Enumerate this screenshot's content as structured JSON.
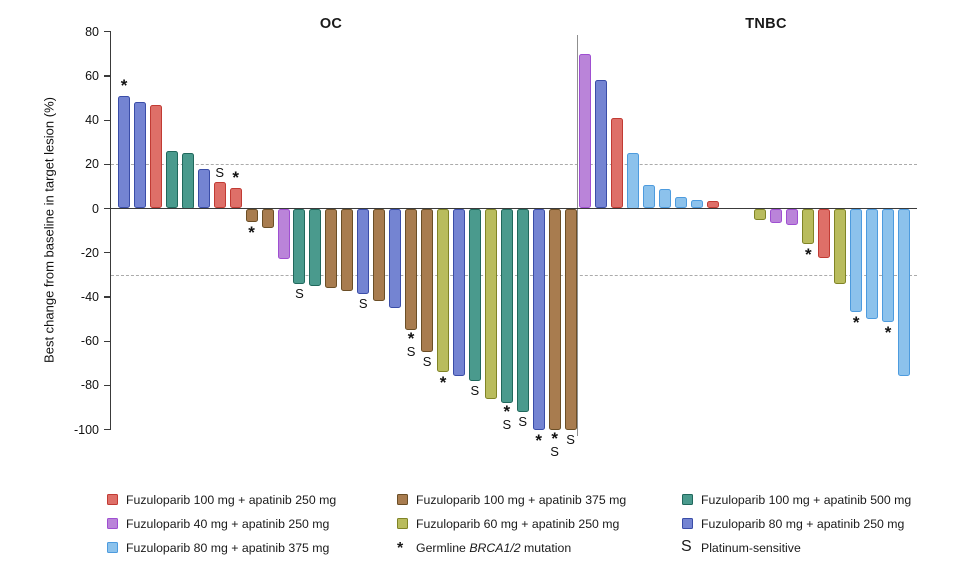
{
  "figure": {
    "ylabel": "Best change from baseline in target lesion (%)"
  },
  "colors": {
    "fuzu100_apa250": {
      "fill": "#DE6F68",
      "border": "#C13B34"
    },
    "fuzu100_apa375": {
      "fill": "#A87C4F",
      "border": "#6B4E26"
    },
    "fuzu100_apa500": {
      "fill": "#4A9A8D",
      "border": "#20685C"
    },
    "fuzu40_apa250": {
      "fill": "#BA84D9",
      "border": "#9F4FD1"
    },
    "fuzu60_apa250": {
      "fill": "#B9BC5D",
      "border": "#808426"
    },
    "fuzu80_apa250": {
      "fill": "#7484D2",
      "border": "#3A4DA8"
    },
    "fuzu80_apa375": {
      "fill": "#8CC2EC",
      "border": "#4D9BDE"
    }
  },
  "chart_data": {
    "type": "bar",
    "title": "",
    "ylabel": "Best change from baseline in target lesion (%)",
    "ylim": [
      -100,
      80
    ],
    "yticks": [
      80,
      60,
      40,
      20,
      0,
      -20,
      -40,
      -60,
      -80,
      -100
    ],
    "reference_lines": [
      20,
      -30
    ],
    "grid": "off",
    "legend_position": "bottom",
    "mark_meanings": {
      "*": "Germline BRCA1/2 mutation",
      "S": "Platinum-sensitive"
    },
    "panels": [
      {
        "name": "OC",
        "bars": [
          {
            "slot": 0,
            "group": "fuzu80_apa250",
            "value": 51,
            "mark": "*"
          },
          {
            "slot": 1,
            "group": "fuzu80_apa250",
            "value": 48,
            "mark": ""
          },
          {
            "slot": 2,
            "group": "fuzu100_apa250",
            "value": 47,
            "mark": ""
          },
          {
            "slot": 3,
            "group": "fuzu100_apa500",
            "value": 26,
            "mark": ""
          },
          {
            "slot": 4,
            "group": "fuzu100_apa500",
            "value": 25,
            "mark": ""
          },
          {
            "slot": 5,
            "group": "fuzu80_apa250",
            "value": 18,
            "mark": ""
          },
          {
            "slot": 6,
            "group": "fuzu100_apa250",
            "value": 12,
            "mark": "S"
          },
          {
            "slot": 7,
            "group": "fuzu100_apa250",
            "value": 9.5,
            "mark": "*"
          },
          {
            "slot": 8,
            "group": "fuzu100_apa375",
            "value": -6,
            "mark": "*"
          },
          {
            "slot": 9,
            "group": "fuzu100_apa375",
            "value": -9,
            "mark": ""
          },
          {
            "slot": 10,
            "group": "fuzu40_apa250",
            "value": -23,
            "mark": ""
          },
          {
            "slot": 11,
            "group": "fuzu100_apa500",
            "value": -34,
            "mark": "S"
          },
          {
            "slot": 12,
            "group": "fuzu100_apa500",
            "value": -35,
            "mark": ""
          },
          {
            "slot": 13,
            "group": "fuzu100_apa375",
            "value": -36,
            "mark": ""
          },
          {
            "slot": 14,
            "group": "fuzu100_apa375",
            "value": -37.5,
            "mark": ""
          },
          {
            "slot": 15,
            "group": "fuzu80_apa250",
            "value": -38.5,
            "mark": "S"
          },
          {
            "slot": 16,
            "group": "fuzu100_apa375",
            "value": -42,
            "mark": ""
          },
          {
            "slot": 17,
            "group": "fuzu80_apa250",
            "value": -45,
            "mark": ""
          },
          {
            "slot": 18,
            "group": "fuzu100_apa375",
            "value": -55,
            "mark": "*S"
          },
          {
            "slot": 19,
            "group": "fuzu100_apa375",
            "value": -65,
            "mark": "S"
          },
          {
            "slot": 20,
            "group": "fuzu60_apa250",
            "value": -74,
            "mark": "*"
          },
          {
            "slot": 21,
            "group": "fuzu80_apa250",
            "value": -76,
            "mark": ""
          },
          {
            "slot": 22,
            "group": "fuzu100_apa500",
            "value": -78,
            "mark": "S"
          },
          {
            "slot": 23,
            "group": "fuzu60_apa250",
            "value": -86,
            "mark": ""
          },
          {
            "slot": 24,
            "group": "fuzu100_apa500",
            "value": -88,
            "mark": "*S"
          },
          {
            "slot": 25,
            "group": "fuzu100_apa500",
            "value": -92,
            "mark": "S"
          },
          {
            "slot": 26,
            "group": "fuzu80_apa250",
            "value": -100,
            "mark": "*"
          },
          {
            "slot": 27,
            "group": "fuzu100_apa375",
            "value": -100,
            "mark": "*S"
          },
          {
            "slot": 28,
            "group": "fuzu100_apa375",
            "value": -100,
            "mark": "S"
          }
        ]
      },
      {
        "name": "TNBC",
        "bars": [
          {
            "slot": 0,
            "group": "fuzu40_apa250",
            "value": 70,
            "mark": ""
          },
          {
            "slot": 1,
            "group": "fuzu80_apa250",
            "value": 58,
            "mark": ""
          },
          {
            "slot": 2,
            "group": "fuzu100_apa250",
            "value": 41,
            "mark": ""
          },
          {
            "slot": 3,
            "group": "fuzu80_apa375",
            "value": 25,
            "mark": ""
          },
          {
            "slot": 4,
            "group": "fuzu80_apa375",
            "value": 10.5,
            "mark": ""
          },
          {
            "slot": 5,
            "group": "fuzu80_apa375",
            "value": 9,
            "mark": ""
          },
          {
            "slot": 6,
            "group": "fuzu80_apa375",
            "value": 5,
            "mark": ""
          },
          {
            "slot": 7,
            "group": "fuzu80_apa375",
            "value": 4,
            "mark": ""
          },
          {
            "slot": 8,
            "group": "fuzu100_apa250",
            "value": 3.5,
            "mark": ""
          },
          {
            "slot": 11,
            "group": "fuzu60_apa250",
            "value": -5,
            "mark": ""
          },
          {
            "slot": 12,
            "group": "fuzu40_apa250",
            "value": -6.5,
            "mark": ""
          },
          {
            "slot": 13,
            "group": "fuzu40_apa250",
            "value": -7.5,
            "mark": ""
          },
          {
            "slot": 14,
            "group": "fuzu60_apa250",
            "value": -16,
            "mark": "*"
          },
          {
            "slot": 15,
            "group": "fuzu100_apa250",
            "value": -22.5,
            "mark": ""
          },
          {
            "slot": 16,
            "group": "fuzu60_apa250",
            "value": -34,
            "mark": ""
          },
          {
            "slot": 17,
            "group": "fuzu80_apa375",
            "value": -47,
            "mark": "*"
          },
          {
            "slot": 18,
            "group": "fuzu80_apa375",
            "value": -50,
            "mark": ""
          },
          {
            "slot": 19,
            "group": "fuzu80_apa375",
            "value": -51.5,
            "mark": "*"
          },
          {
            "slot": 20,
            "group": "fuzu80_apa375",
            "value": -76,
            "mark": ""
          }
        ]
      }
    ]
  },
  "legend": {
    "items": [
      {
        "swatch": "fuzu100_apa250",
        "label": "Fuzuloparib 100 mg + apatinib 250 mg"
      },
      {
        "swatch": "fuzu100_apa375",
        "label": "Fuzuloparib 100 mg + apatinib 375 mg"
      },
      {
        "swatch": "fuzu100_apa500",
        "label": "Fuzuloparib 100 mg + apatinib 500 mg"
      },
      {
        "swatch": "fuzu40_apa250",
        "label": "Fuzuloparib 40 mg + apatinib 250 mg"
      },
      {
        "swatch": "fuzu60_apa250",
        "label": "Fuzuloparib 60 mg + apatinib 250 mg"
      },
      {
        "swatch": "fuzu80_apa250",
        "label": "Fuzuloparib 80 mg + apatinib 250 mg"
      },
      {
        "swatch": "fuzu80_apa375",
        "label": "Fuzuloparib 80 mg + apatinib 375 mg"
      },
      {
        "symbol": "*",
        "label_prefix": "Germline ",
        "label_italic": "BRCA1/2",
        "label_suffix": " mutation"
      },
      {
        "symbol": "S",
        "label": "Platinum-sensitive"
      }
    ]
  }
}
